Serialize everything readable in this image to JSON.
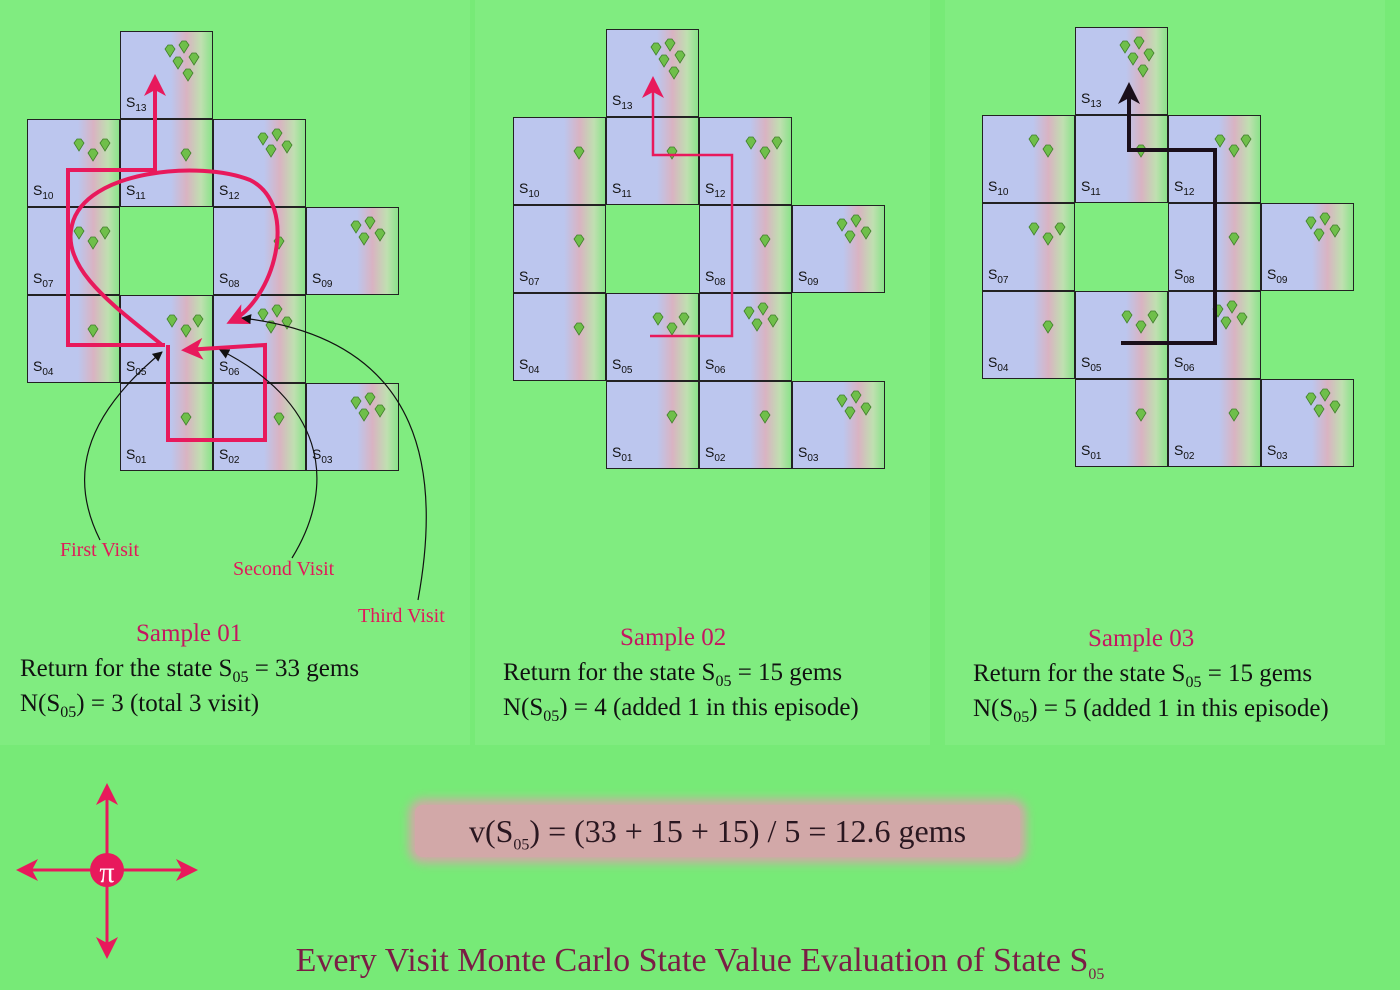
{
  "grids": [
    {
      "cells": [
        {
          "label": "S",
          "sub": "13",
          "gems": 5
        },
        {
          "label": "S",
          "sub": "10",
          "gems": 3
        },
        {
          "label": "S",
          "sub": "11",
          "gems": 1
        },
        {
          "label": "S",
          "sub": "12",
          "gems": 4
        },
        {
          "label": "S",
          "sub": "07",
          "gems": 3
        },
        {
          "label": "S",
          "sub": "08",
          "gems": 1
        },
        {
          "label": "S",
          "sub": "09",
          "gems": 4
        },
        {
          "label": "S",
          "sub": "04",
          "gems": 1
        },
        {
          "label": "S",
          "sub": "05",
          "gems": 3
        },
        {
          "label": "S",
          "sub": "06",
          "gems": 4
        },
        {
          "label": "S",
          "sub": "01",
          "gems": 1
        },
        {
          "label": "S",
          "sub": "02",
          "gems": 1
        },
        {
          "label": "S",
          "sub": "03",
          "gems": 4
        }
      ]
    },
    {
      "cells": [
        {
          "label": "S",
          "sub": "13",
          "gems": 5
        },
        {
          "label": "S",
          "sub": "10",
          "gems": 1
        },
        {
          "label": "S",
          "sub": "11",
          "gems": 1
        },
        {
          "label": "S",
          "sub": "12",
          "gems": 3
        },
        {
          "label": "S",
          "sub": "07",
          "gems": 1
        },
        {
          "label": "S",
          "sub": "08",
          "gems": 1
        },
        {
          "label": "S",
          "sub": "09",
          "gems": 4
        },
        {
          "label": "S",
          "sub": "04",
          "gems": 1
        },
        {
          "label": "S",
          "sub": "05",
          "gems": 3
        },
        {
          "label": "S",
          "sub": "06",
          "gems": 4
        },
        {
          "label": "S",
          "sub": "01",
          "gems": 1
        },
        {
          "label": "S",
          "sub": "02",
          "gems": 1
        },
        {
          "label": "S",
          "sub": "03",
          "gems": 4
        }
      ]
    },
    {
      "cells": [
        {
          "label": "S",
          "sub": "13",
          "gems": 5
        },
        {
          "label": "S",
          "sub": "10",
          "gems": 2
        },
        {
          "label": "S",
          "sub": "11",
          "gems": 1
        },
        {
          "label": "S",
          "sub": "12",
          "gems": 3
        },
        {
          "label": "S",
          "sub": "07",
          "gems": 3
        },
        {
          "label": "S",
          "sub": "08",
          "gems": 1
        },
        {
          "label": "S",
          "sub": "09",
          "gems": 4
        },
        {
          "label": "S",
          "sub": "04",
          "gems": 1
        },
        {
          "label": "S",
          "sub": "05",
          "gems": 3
        },
        {
          "label": "S",
          "sub": "06",
          "gems": 4
        },
        {
          "label": "S",
          "sub": "01",
          "gems": 1
        },
        {
          "label": "S",
          "sub": "02",
          "gems": 1
        },
        {
          "label": "S",
          "sub": "03",
          "gems": 4
        }
      ]
    }
  ],
  "visit_labels": {
    "first": "First Visit",
    "second": "Second Visit",
    "third": "Third Visit"
  },
  "samples": [
    {
      "title": "Sample 01",
      "return_pre": "Return for the state S",
      "return_sub": "05",
      "return_post": " = 33 gems",
      "count_pre": "N(S",
      "count_sub": "05",
      "count_post": ") = 3 (total 3 visit)"
    },
    {
      "title": "Sample 02",
      "return_pre": "Return for the state S",
      "return_sub": "05",
      "return_post": " = 15 gems",
      "count_pre": "N(S",
      "count_sub": "05",
      "count_post": ") = 4 (added 1 in this episode)"
    },
    {
      "title": "Sample 03",
      "return_pre": "Return for the state S",
      "return_sub": "05",
      "return_post": " = 15 gems",
      "count_pre": "N(S",
      "count_sub": "05",
      "count_post": ") = 5 (added 1 in this episode)"
    }
  ],
  "formula": {
    "pre": "v(S",
    "sub": "05",
    "post": ") = (33 + 15 + 15) / 5 = 12.6 gems"
  },
  "footer": {
    "pre": "Every Visit Monte Carlo State Value Evaluation of State S",
    "sub": "05"
  },
  "compass": {
    "symbol": "π",
    "color": "#e8195c"
  },
  "colors": {
    "path_red": "#e8195c",
    "path_black": "#1a0f1a",
    "gem_green": "#6fbf4a"
  }
}
